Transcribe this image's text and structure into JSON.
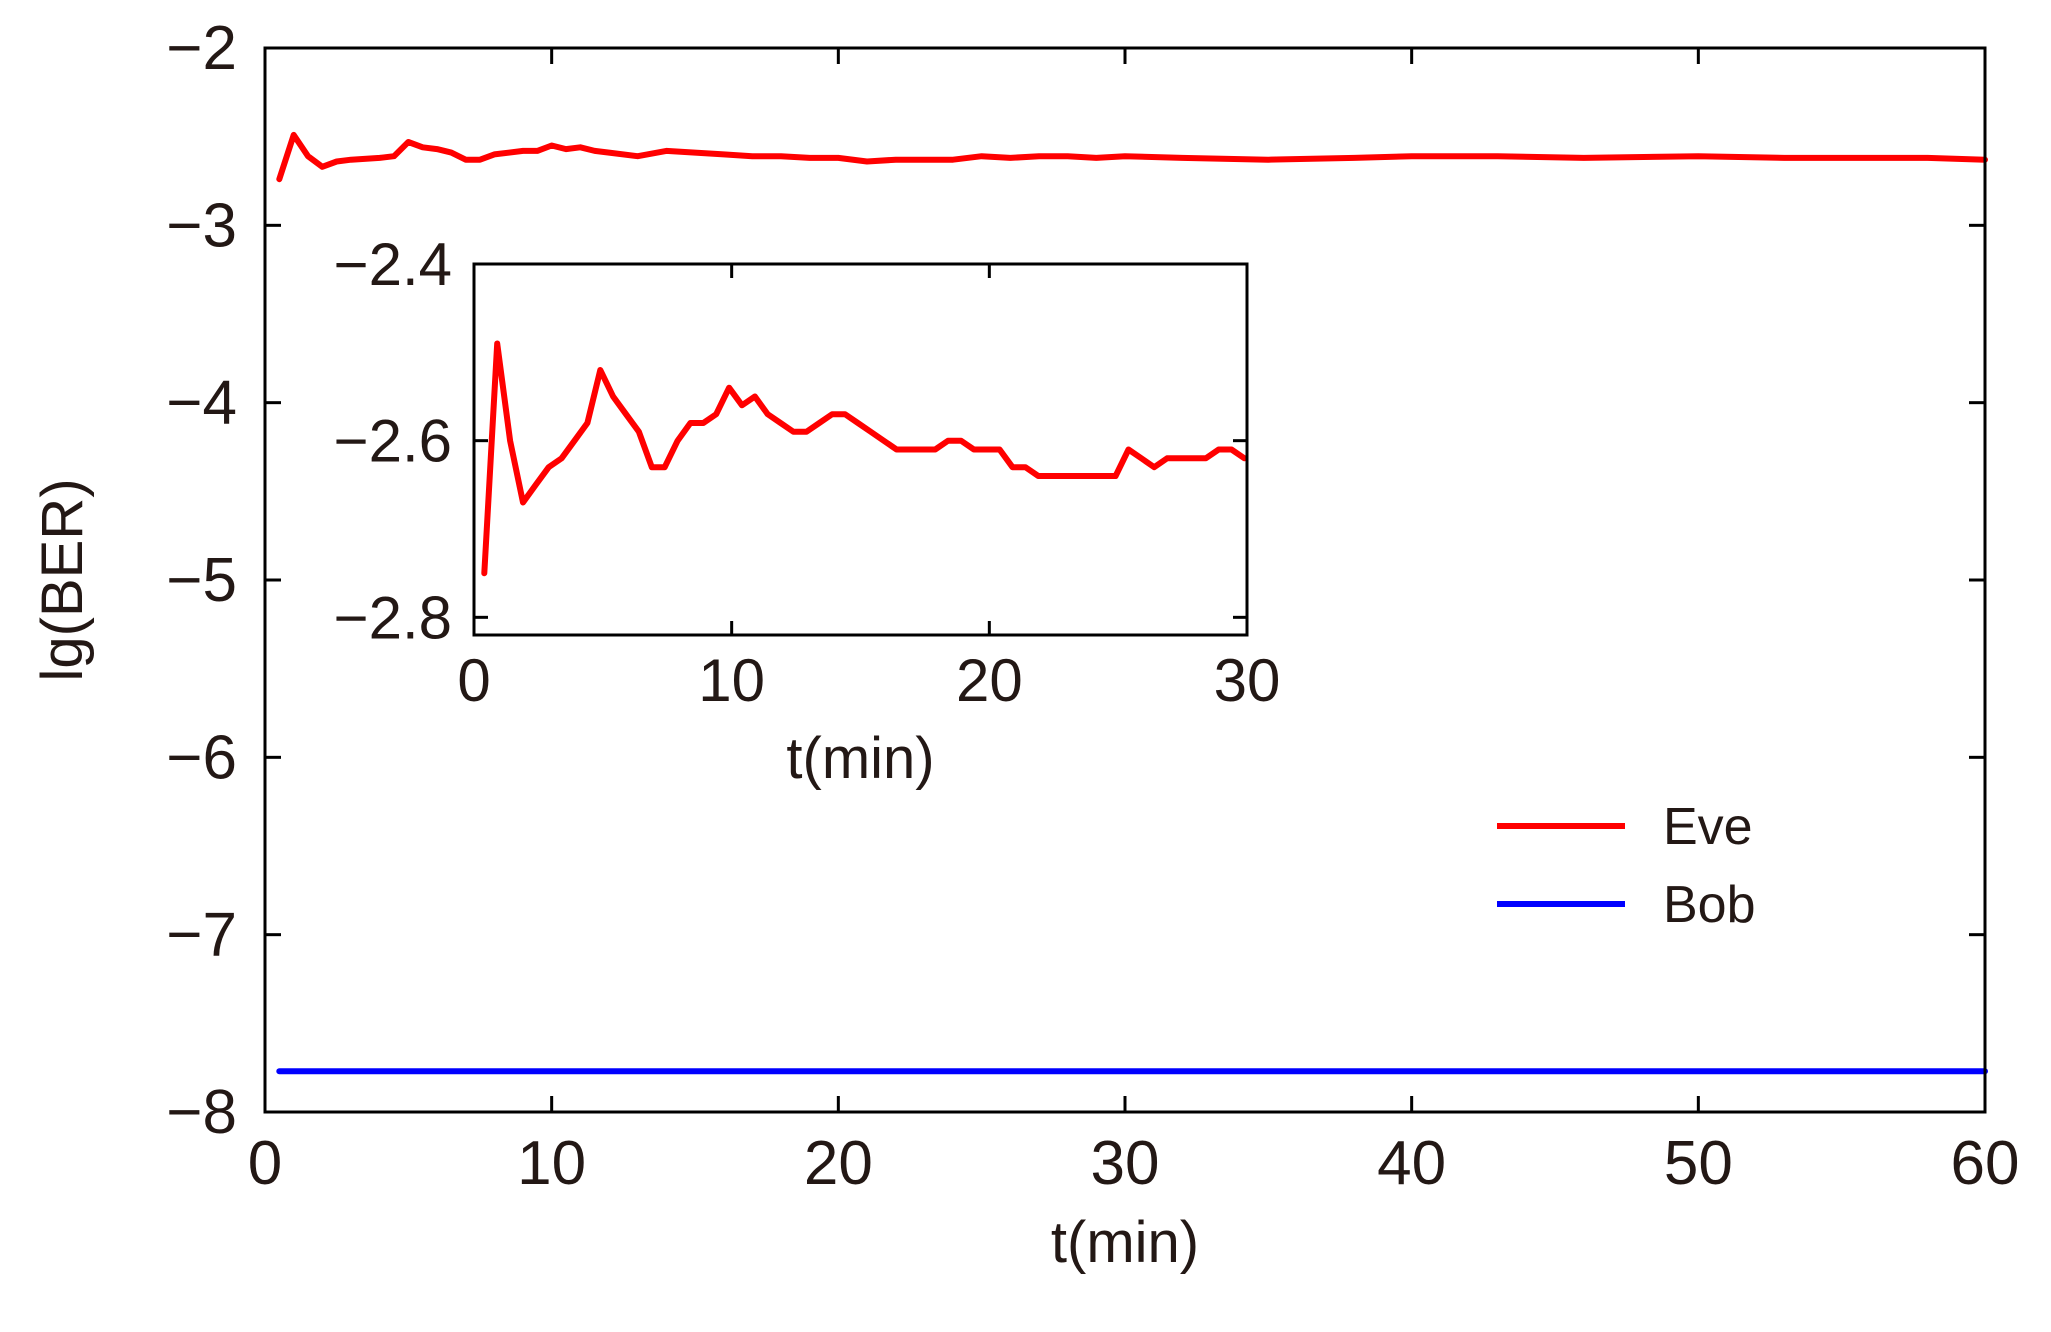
{
  "chart_data": [
    {
      "id": "main",
      "type": "line",
      "title": "",
      "xlabel": "t(min)",
      "ylabel": "lg(BER)",
      "xlim": [
        0,
        60
      ],
      "ylim": [
        -8,
        -2
      ],
      "xticks": [
        0,
        10,
        20,
        30,
        40,
        50,
        60
      ],
      "yticks": [
        -8,
        -7,
        -6,
        -5,
        -4,
        -3,
        -2
      ],
      "ytick_labels": [
        "−8",
        "−7",
        "−6",
        "−5",
        "−4",
        "−3",
        "−2"
      ],
      "grid": false,
      "legend": "right",
      "series": [
        {
          "name": "Eve",
          "color": "#ff0000",
          "x": [
            0.5,
            1,
            1.5,
            2,
            2.5,
            3,
            4,
            4.5,
            5,
            5.5,
            6,
            6.5,
            7,
            7.5,
            8,
            9,
            9.5,
            10,
            10.5,
            11,
            11.5,
            12,
            13,
            14,
            15,
            16,
            17,
            18,
            19,
            20,
            21,
            22,
            23,
            24,
            25,
            26,
            27,
            28,
            29,
            30,
            32,
            35,
            38,
            40,
            43,
            46,
            50,
            53,
            55,
            58,
            60
          ],
          "y": [
            -2.74,
            -2.49,
            -2.61,
            -2.67,
            -2.64,
            -2.63,
            -2.62,
            -2.61,
            -2.53,
            -2.56,
            -2.57,
            -2.59,
            -2.63,
            -2.63,
            -2.6,
            -2.58,
            -2.58,
            -2.55,
            -2.57,
            -2.56,
            -2.58,
            -2.59,
            -2.61,
            -2.58,
            -2.59,
            -2.6,
            -2.61,
            -2.61,
            -2.62,
            -2.62,
            -2.64,
            -2.63,
            -2.63,
            -2.63,
            -2.61,
            -2.62,
            -2.61,
            -2.61,
            -2.62,
            -2.61,
            -2.62,
            -2.63,
            -2.62,
            -2.61,
            -2.61,
            -2.62,
            -2.61,
            -2.62,
            -2.62,
            -2.62,
            -2.63
          ]
        },
        {
          "name": "Bob",
          "color": "#0000ff",
          "x": [
            0.5,
            60
          ],
          "y": [
            -7.77,
            -7.77
          ]
        }
      ]
    },
    {
      "id": "inset",
      "type": "line",
      "title": "",
      "xlabel": "t(min)",
      "ylabel": "",
      "xlim": [
        0,
        30
      ],
      "ylim": [
        -2.82,
        -2.4
      ],
      "xticks": [
        0,
        10,
        20,
        30
      ],
      "yticks": [
        -2.8,
        -2.6,
        -2.4
      ],
      "ytick_labels": [
        "−2.8",
        "−2.6",
        "−2.4"
      ],
      "grid": false,
      "series": [
        {
          "name": "Eve",
          "color": "#ff0000",
          "x": [
            0.4,
            0.9,
            1.4,
            1.9,
            2.4,
            2.9,
            3.4,
            3.9,
            4.4,
            4.9,
            5.4,
            5.9,
            6.4,
            6.9,
            7.4,
            7.9,
            8.4,
            8.9,
            9.4,
            9.9,
            10.4,
            10.9,
            11.4,
            11.9,
            12.4,
            12.9,
            13.4,
            13.9,
            14.4,
            14.9,
            15.4,
            15.9,
            16.4,
            16.9,
            17.4,
            17.9,
            18.4,
            18.9,
            19.4,
            19.9,
            20.4,
            20.9,
            21.4,
            21.9,
            22.4,
            22.9,
            23.4,
            23.9,
            24.4,
            24.9,
            25.4,
            25.9,
            26.4,
            26.9,
            27.4,
            27.9,
            28.4,
            28.9,
            29.4,
            29.9
          ],
          "y": [
            -2.75,
            -2.49,
            -2.6,
            -2.67,
            -2.65,
            -2.63,
            -2.62,
            -2.6,
            -2.58,
            -2.52,
            -2.55,
            -2.57,
            -2.59,
            -2.63,
            -2.63,
            -2.6,
            -2.58,
            -2.58,
            -2.57,
            -2.54,
            -2.56,
            -2.55,
            -2.57,
            -2.58,
            -2.59,
            -2.59,
            -2.58,
            -2.57,
            -2.57,
            -2.58,
            -2.59,
            -2.6,
            -2.61,
            -2.61,
            -2.61,
            -2.61,
            -2.6,
            -2.6,
            -2.61,
            -2.61,
            -2.61,
            -2.63,
            -2.63,
            -2.64,
            -2.64,
            -2.64,
            -2.64,
            -2.64,
            -2.64,
            -2.64,
            -2.61,
            -2.62,
            -2.63,
            -2.62,
            -2.62,
            -2.62,
            -2.62,
            -2.61,
            -2.61,
            -2.62
          ]
        }
      ]
    }
  ]
}
